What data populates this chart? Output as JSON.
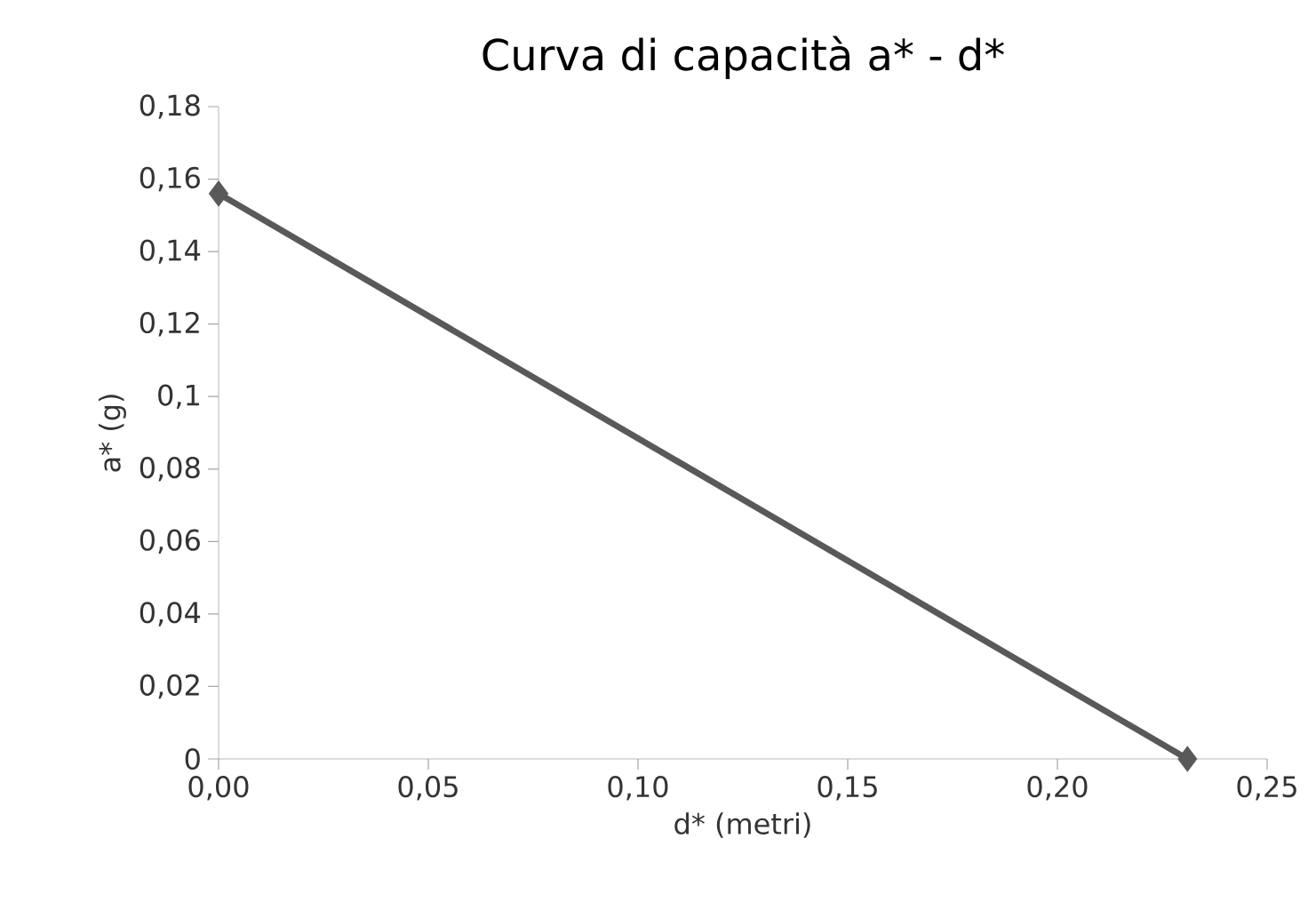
{
  "chart_data": {
    "type": "line",
    "title": "Curva di capacità a* - d*",
    "xlabel": "d* (metri)",
    "ylabel": "a* (g)",
    "x": [
      0,
      0.231
    ],
    "series": [
      {
        "color": "#595959",
        "values": [
          0.156,
          0
        ]
      }
    ],
    "marker": "diamond",
    "line_style": "solid",
    "xlim": [
      0,
      0.25
    ],
    "ylim": [
      0,
      0.18
    ],
    "xticks": [
      {
        "value": 0,
        "label": "0,00"
      },
      {
        "value": 0.05,
        "label": "0,05"
      },
      {
        "value": 0.1,
        "label": "0,10"
      },
      {
        "value": 0.15,
        "label": "0,15"
      },
      {
        "value": 0.2,
        "label": "0,20"
      },
      {
        "value": 0.25,
        "label": "0,25"
      }
    ],
    "yticks": [
      0,
      {
        "value": 0.02,
        "label": "0,02"
      },
      {
        "value": 0.04,
        "label": "0,04"
      },
      {
        "value": 0.06,
        "label": "0,06"
      },
      {
        "value": 0.08,
        "label": "0,08"
      },
      {
        "value": 0.1,
        "label": "0,1"
      },
      {
        "value": 0.12,
        "label": "0,12"
      },
      {
        "value": 0.14,
        "label": "0,14"
      },
      {
        "value": 0.16,
        "label": "0,16"
      },
      {
        "value": 0.18,
        "label": "0,18"
      }
    ]
  }
}
